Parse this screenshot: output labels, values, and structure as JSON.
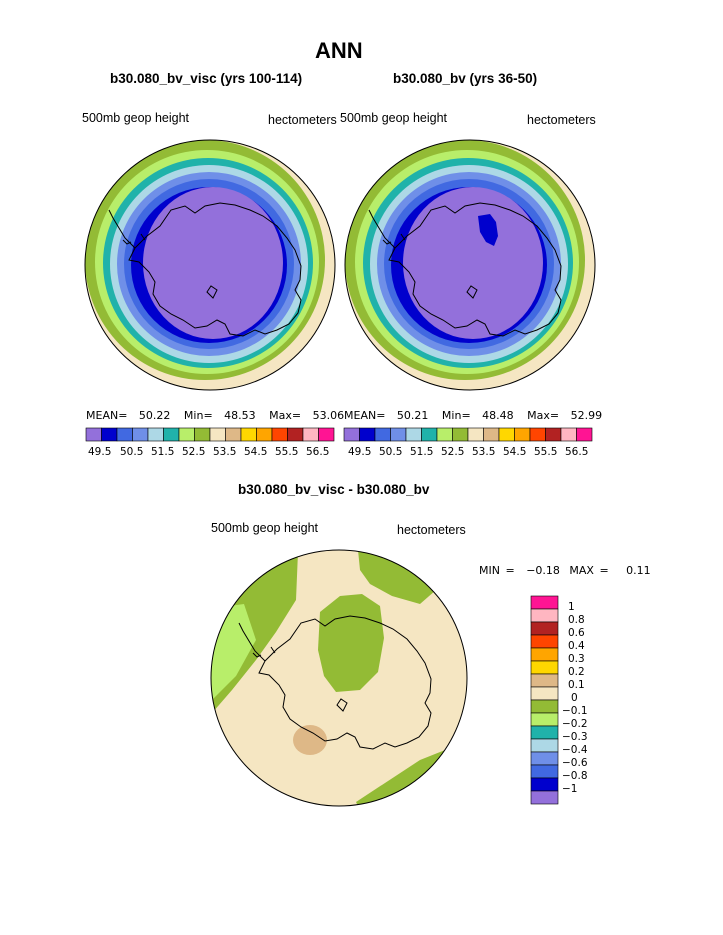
{
  "main_title": "ANN",
  "panels": [
    {
      "title": "b30.080_bv_visc (yrs 100-114)",
      "var_label": "500mb geop height",
      "units": "hectometers",
      "stats": {
        "mean_label": "MEAN=",
        "mean": "50.22",
        "min_label": "Min=",
        "min": "48.53",
        "max_label": "Max=",
        "max": "53.06"
      },
      "colorbar_ticks": [
        "49.5",
        "50.5",
        "51.5",
        "52.5",
        "53.5",
        "54.5",
        "55.5",
        "56.5"
      ]
    },
    {
      "title": "b30.080_bv (yrs 36-50)",
      "var_label": "500mb geop height",
      "units": "hectometers",
      "stats": {
        "mean_label": "MEAN=",
        "mean": "50.21",
        "min_label": "Min=",
        "min": "48.48",
        "max_label": "Max=",
        "max": "52.99"
      },
      "colorbar_ticks": [
        "49.5",
        "50.5",
        "51.5",
        "52.5",
        "53.5",
        "54.5",
        "55.5",
        "56.5"
      ]
    }
  ],
  "diff_panel": {
    "title": "b30.080_bv_visc - b30.080_bv",
    "var_label": "500mb geop height",
    "units": "hectometers",
    "stats": {
      "min_label": "MIN =",
      "min": "−0.18",
      "max_label": "MAX =",
      "max": "0.11"
    },
    "colorbar_ticks": [
      "1",
      "0.8",
      "0.6",
      "0.4",
      "0.3",
      "0.2",
      "0.1",
      "0",
      "−0.1",
      "−0.2",
      "−0.3",
      "−0.4",
      "−0.6",
      "−0.8",
      "−1"
    ]
  },
  "colors": {
    "field_scale": [
      "#9370db",
      "#0000cd",
      "#4169e1",
      "#6f8fe8",
      "#add8e6",
      "#20b2aa",
      "#b8ee6a",
      "#93bb35",
      "#f5e6c2",
      "#deb887",
      "#ffd700",
      "#ffa500",
      "#ff4500",
      "#b22222",
      "#ffb6c1",
      "#ff1493"
    ],
    "diff_scale_top_to_bottom": [
      "#ff1493",
      "#ffb6c1",
      "#b22222",
      "#ff4500",
      "#ffa500",
      "#ffd700",
      "#deb887",
      "#f5e6c2",
      "#93bb35",
      "#b8ee6a",
      "#20b2aa",
      "#add8e6",
      "#6f8fe8",
      "#4169e1",
      "#0000cd",
      "#9370db"
    ]
  }
}
